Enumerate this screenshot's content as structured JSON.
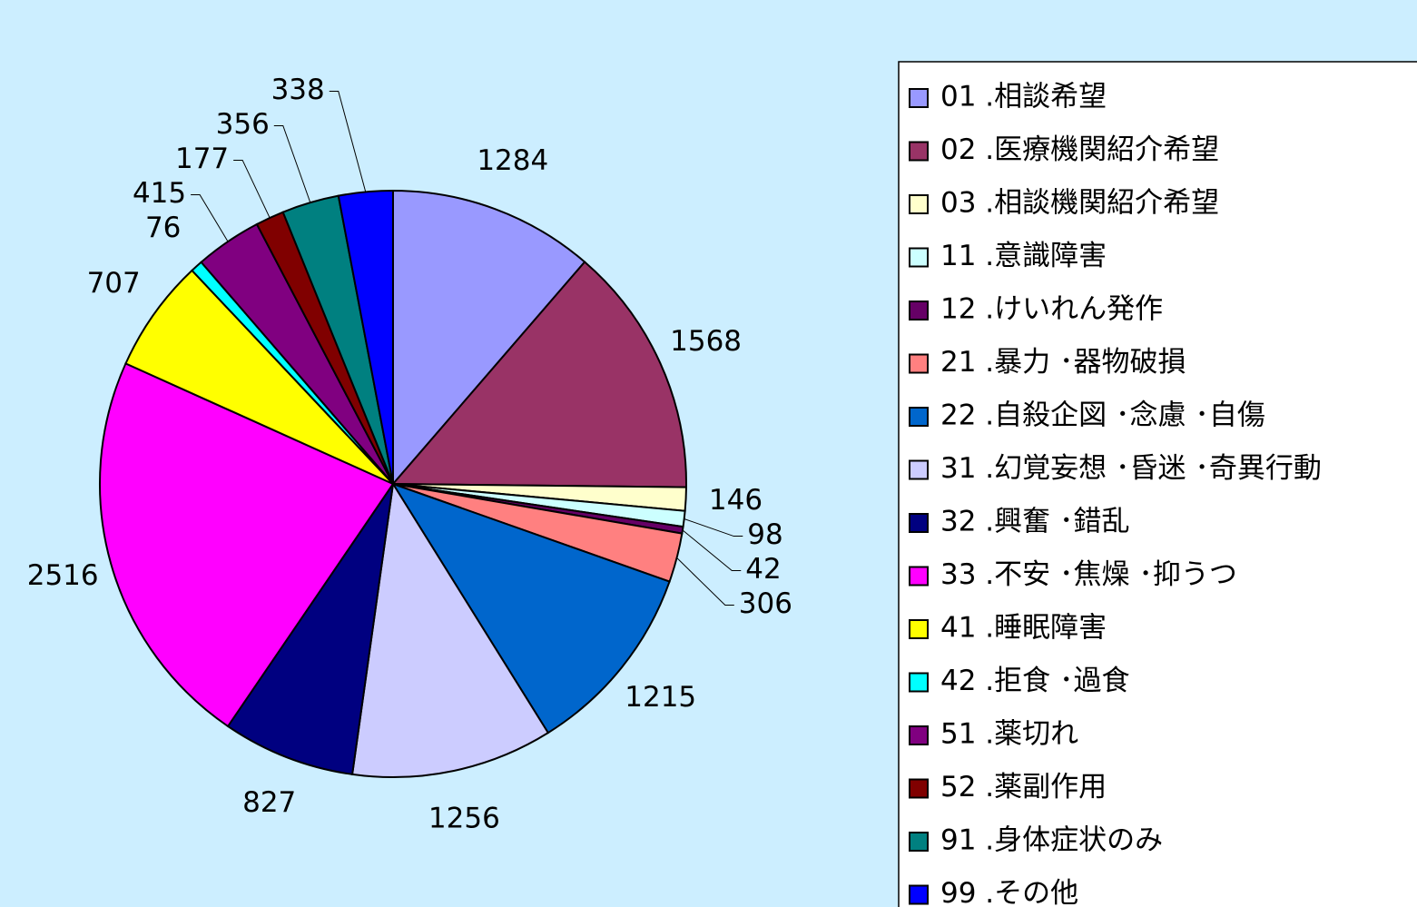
{
  "chart_data": {
    "type": "pie",
    "categories": [
      "01 .相談希望",
      "02 .医療機関紹介希望",
      "03 .相談機関紹介希望",
      "11 .意識障害",
      "12 .けいれん発作",
      "21 .暴力 ･器物破損",
      "22 .自殺企図 ･念慮 ･自傷",
      "31 .幻覚妄想 ･昏迷 ･奇異行動",
      "32 .興奮 ･錯乱",
      "33 .不安 ･焦燥 ･抑うつ",
      "41 .睡眠障害",
      "42 .拒食 ･過食",
      "51 .薬切れ",
      "52 .薬副作用",
      "91 .身体症状のみ",
      "99 .その他"
    ],
    "values": [
      1284,
      1568,
      146,
      98,
      42,
      306,
      1215,
      1256,
      827,
      2516,
      707,
      76,
      415,
      177,
      356,
      338
    ],
    "colors": [
      "#9999ff",
      "#993366",
      "#ffffcc",
      "#ccffff",
      "#660066",
      "#ff8080",
      "#0066cc",
      "#ccccff",
      "#000080",
      "#ff00ff",
      "#ffff00",
      "#00ffff",
      "#800080",
      "#800000",
      "#008080",
      "#0000ff"
    ],
    "legend": "right"
  }
}
